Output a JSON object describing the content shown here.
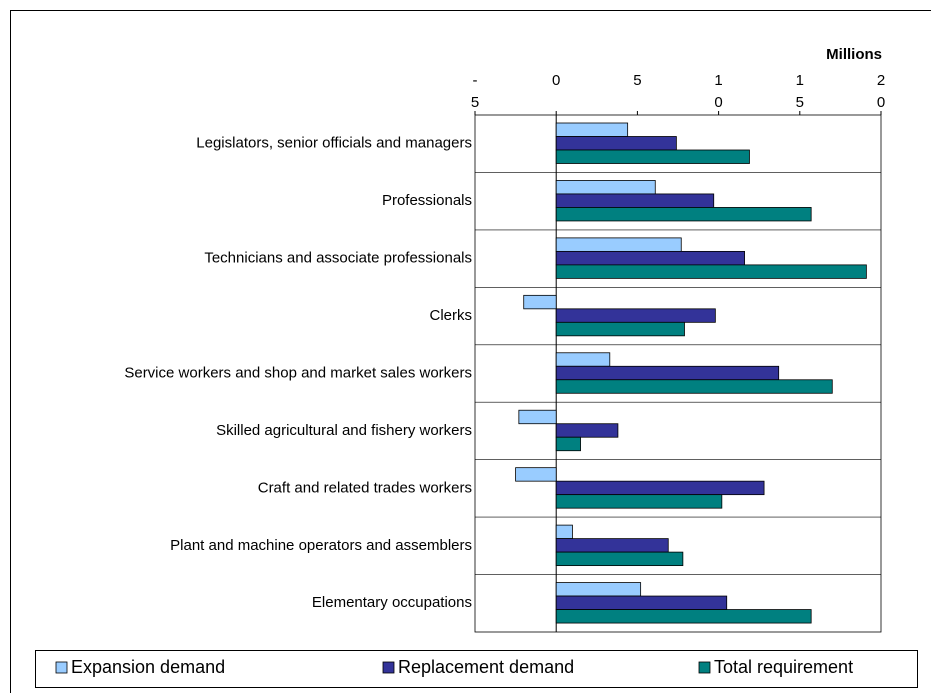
{
  "chart_data": {
    "type": "hbar",
    "xlabel": "Millions",
    "categories": [
      "Legislators, senior officials and managers",
      "Professionals",
      "Technicians and associate professionals",
      "Clerks",
      "Service workers and shop and market sales workers",
      "Skilled agricultural and fishery workers",
      "Craft and related trades workers",
      "Plant and machine operators and assemblers",
      "Elementary occupations"
    ],
    "series": [
      {
        "name": "Expansion demand",
        "color": "#99ccff",
        "values": [
          4.4,
          6.1,
          7.7,
          -2.0,
          3.3,
          -2.3,
          -2.5,
          1.0,
          5.2
        ]
      },
      {
        "name": "Replacement demand",
        "color": "#333399",
        "values": [
          7.4,
          9.7,
          11.6,
          9.8,
          13.7,
          3.8,
          12.8,
          6.9,
          10.5
        ]
      },
      {
        "name": "Total requirement",
        "color": "#008080",
        "values": [
          11.9,
          15.7,
          19.1,
          7.9,
          17.0,
          1.5,
          10.2,
          7.8,
          15.7
        ]
      }
    ],
    "xlim": [
      -5,
      20
    ],
    "xticks": [
      -5,
      0,
      5,
      10,
      15,
      20
    ]
  }
}
